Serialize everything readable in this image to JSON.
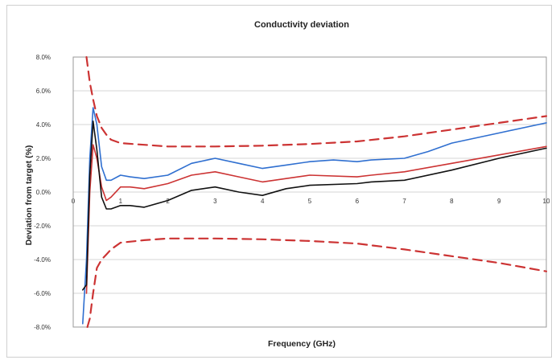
{
  "chart_data": {
    "type": "line",
    "title": "Conductivity deviation",
    "xlabel": "Frequency (GHz)",
    "ylabel": "Deviation from target (%)",
    "xlim": [
      0,
      10
    ],
    "ylim": [
      -8,
      8
    ],
    "x_ticks": [
      0,
      1,
      2,
      3,
      4,
      5,
      6,
      7,
      8,
      9,
      10
    ],
    "x_tick_labels": [
      "0",
      "1",
      "2",
      "3",
      "4",
      "5",
      "6",
      "7",
      "8",
      "9",
      "10"
    ],
    "y_ticks": [
      -8,
      -6,
      -4,
      -2,
      0,
      2,
      4,
      6,
      8
    ],
    "y_tick_labels": [
      "-8.0%",
      "-6.0%",
      "-4.0%",
      "-2.0%",
      "0.0%",
      "2.0%",
      "4.0%",
      "6.0%",
      "8.0%"
    ],
    "grid": "horizontal",
    "legend": "none",
    "series": [
      {
        "color": "#2f6fd0",
        "style": "solid",
        "x": [
          0.2,
          0.28,
          0.35,
          0.42,
          0.5,
          0.6,
          0.7,
          0.8,
          1.0,
          1.2,
          1.5,
          2.0,
          2.5,
          3.0,
          3.5,
          4.0,
          4.5,
          5.0,
          5.5,
          6.0,
          6.3,
          7.0,
          7.5,
          8.0,
          9.0,
          10.0
        ],
        "y": [
          -7.8,
          -4.0,
          2.0,
          5.0,
          4.0,
          1.5,
          0.7,
          0.7,
          1.0,
          0.9,
          0.8,
          1.0,
          1.7,
          2.0,
          1.7,
          1.4,
          1.6,
          1.8,
          1.9,
          1.8,
          1.9,
          2.0,
          2.4,
          2.9,
          3.5,
          4.1
        ]
      },
      {
        "color": "#cc3333",
        "style": "solid",
        "x": [
          0.28,
          0.35,
          0.42,
          0.5,
          0.6,
          0.7,
          0.8,
          1.0,
          1.2,
          1.5,
          2.0,
          2.5,
          3.0,
          3.5,
          4.0,
          4.5,
          5.0,
          6.0,
          6.3,
          7.0,
          8.0,
          9.0,
          10.0
        ],
        "y": [
          -6.0,
          0.0,
          2.8,
          2.0,
          0.3,
          -0.5,
          -0.3,
          0.3,
          0.3,
          0.2,
          0.5,
          1.0,
          1.2,
          0.9,
          0.6,
          0.8,
          1.0,
          0.9,
          1.0,
          1.2,
          1.7,
          2.2,
          2.7
        ]
      },
      {
        "color": "#111111",
        "style": "solid",
        "x": [
          0.2,
          0.28,
          0.35,
          0.42,
          0.5,
          0.6,
          0.7,
          0.8,
          1.0,
          1.2,
          1.5,
          2.0,
          2.5,
          3.0,
          3.5,
          4.0,
          4.5,
          5.0,
          6.0,
          6.3,
          7.0,
          8.0,
          9.0,
          10.0
        ],
        "y": [
          -5.8,
          -5.5,
          1.0,
          4.2,
          2.5,
          -0.3,
          -1.0,
          -1.0,
          -0.8,
          -0.8,
          -0.9,
          -0.5,
          0.1,
          0.3,
          0.0,
          -0.2,
          0.2,
          0.4,
          0.5,
          0.6,
          0.7,
          1.3,
          2.0,
          2.6
        ]
      },
      {
        "color": "#cc3333",
        "style": "dashed",
        "x": [
          0.28,
          0.35,
          0.42,
          0.5,
          0.6,
          0.7,
          0.8,
          1.0,
          1.5,
          2.0,
          3.0,
          4.0,
          5.0,
          6.0,
          7.0,
          8.0,
          9.0,
          10.0
        ],
        "y": [
          8.0,
          6.5,
          5.5,
          4.5,
          3.8,
          3.4,
          3.1,
          2.9,
          2.8,
          2.7,
          2.7,
          2.75,
          2.85,
          3.0,
          3.3,
          3.7,
          4.1,
          4.5
        ]
      },
      {
        "color": "#cc3333",
        "style": "dashed",
        "x": [
          0.3,
          0.35,
          0.42,
          0.5,
          0.6,
          0.7,
          0.8,
          1.0,
          1.5,
          2.0,
          3.0,
          4.0,
          5.0,
          6.0,
          7.0,
          8.0,
          9.0,
          10.0
        ],
        "y": [
          -8.0,
          -7.5,
          -6.0,
          -4.5,
          -4.0,
          -3.7,
          -3.4,
          -3.0,
          -2.85,
          -2.75,
          -2.75,
          -2.8,
          -2.9,
          -3.05,
          -3.4,
          -3.8,
          -4.2,
          -4.7
        ]
      }
    ]
  }
}
